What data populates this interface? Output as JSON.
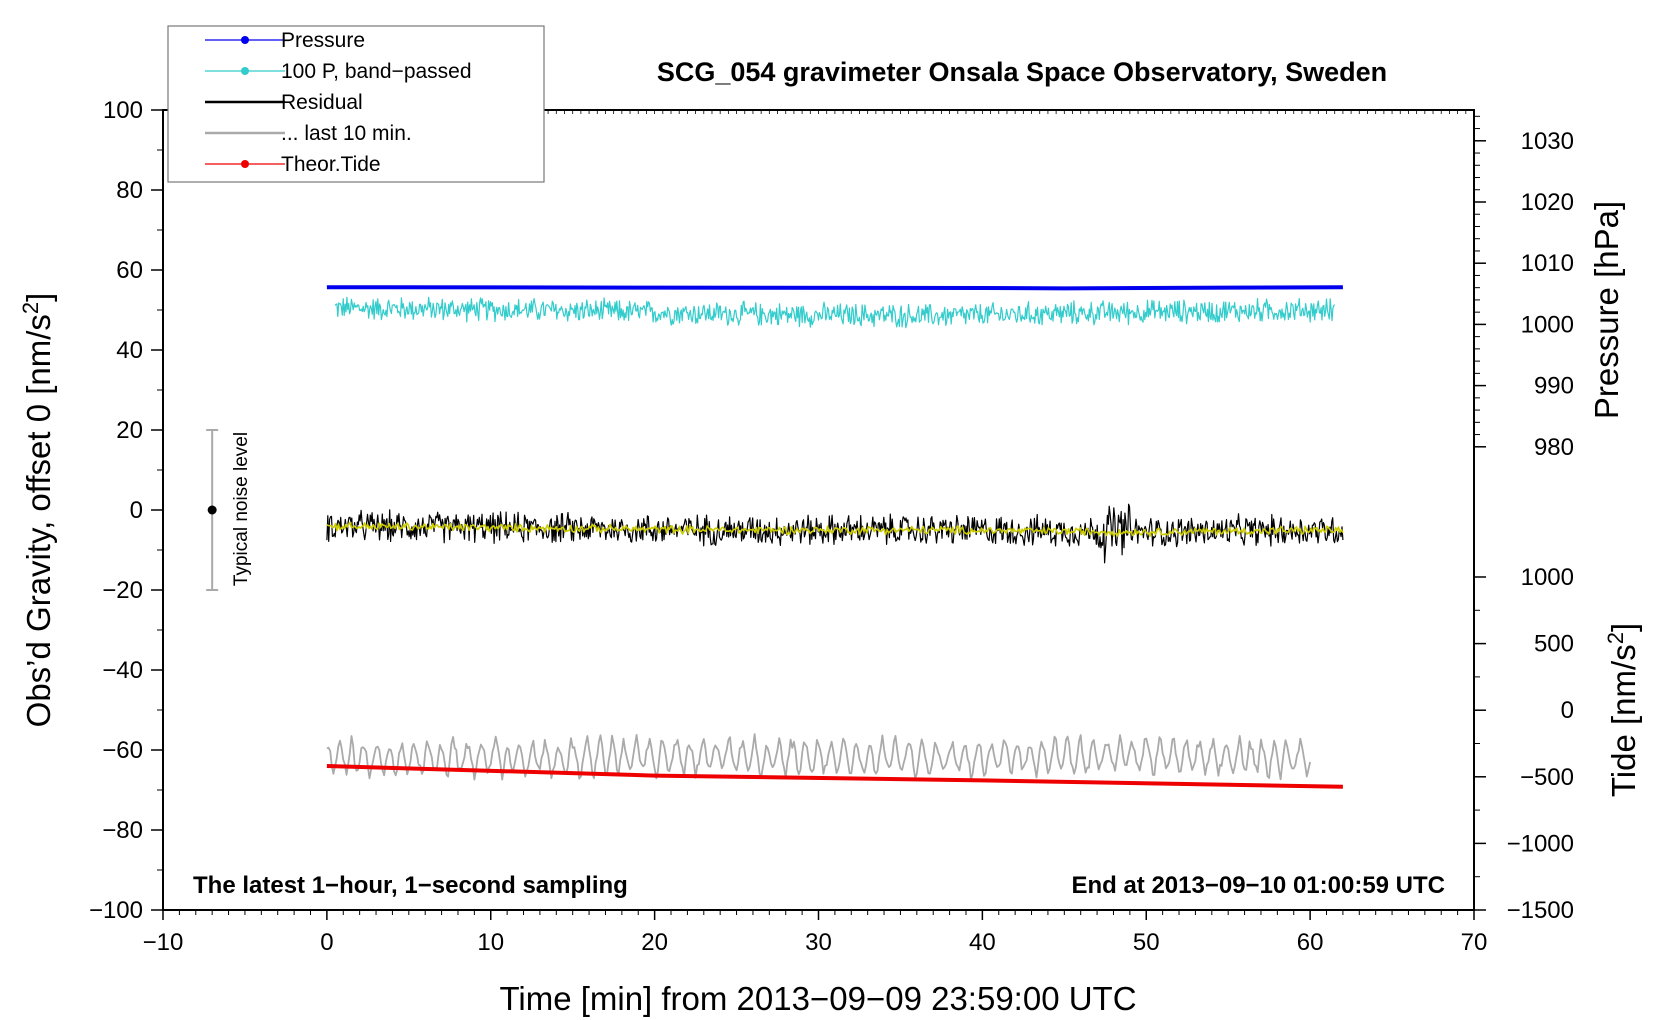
{
  "chart_data": {
    "type": "line",
    "title": "SCG_054 gravimeter Onsala Space Observatory, Sweden",
    "xlabel": "Time [min] from 2013−09−09 23:59:00 UTC",
    "ylabel_left_prefix": "Obs’d Gravity, offset 0 [nm/s",
    "ylabel_left_suffix": "]",
    "ylabel_right_top": "Pressure [hPa]",
    "ylabel_right_bottom_prefix": "Tide [nm/s",
    "ylabel_right_bottom_suffix": "]",
    "superscript": "2",
    "xlim": [
      -10,
      70
    ],
    "ylim": [
      -100,
      100
    ],
    "x_ticks": [
      -10,
      0,
      10,
      20,
      30,
      40,
      50,
      60,
      70
    ],
    "x_tick_labels": [
      "−10",
      "0",
      "10",
      "20",
      "30",
      "40",
      "50",
      "60",
      "70"
    ],
    "y_ticks": [
      -100,
      -80,
      -60,
      -40,
      -20,
      0,
      20,
      40,
      60,
      80,
      100
    ],
    "y_tick_labels": [
      "−100",
      "−80",
      "−60",
      "−40",
      "−20",
      "0",
      "20",
      "40",
      "60",
      "80",
      "100"
    ],
    "pressure_axis": {
      "ticks": [
        980,
        990,
        1000,
        1010,
        1020,
        1030
      ],
      "tick_labels": [
        "980",
        "990",
        "1000",
        "1010",
        "1020",
        "1030"
      ],
      "ref_value": 1000,
      "ref_y": 46.4,
      "gravity_per_hPa": 1.53
    },
    "tide_axis": {
      "ticks": [
        -1500,
        -1000,
        -500,
        0,
        500,
        1000
      ],
      "tick_labels": [
        "−1500",
        "−1000",
        "−500",
        "0",
        "500",
        "1000"
      ],
      "ref_value": -1500,
      "ref_y": -100,
      "gravity_per_unit": 0.0333
    },
    "annotations": {
      "left": "The latest 1−hour, 1−second sampling",
      "right": "End at 2013−09−10 01:00:59 UTC",
      "noise": "Typical noise level"
    },
    "noise_bar": {
      "x": -7,
      "center": 0,
      "half_range": 20
    },
    "legend_position": "top-left",
    "legend": [
      {
        "label": "Pressure",
        "color": "#0000ee",
        "marker": true
      },
      {
        "label": "100 P, band−passed",
        "color": "#33cccc",
        "marker": true
      },
      {
        "label": "Residual",
        "color": "#000000",
        "marker": false
      },
      {
        "label": "... last 10 min.",
        "color": "#aaaaaa",
        "marker": false
      },
      {
        "label": "Theor.Tide",
        "color": "#ee0000",
        "marker": true
      }
    ],
    "series": [
      {
        "name": "Pressure",
        "color": "#0000ee",
        "style": "thick",
        "x": [
          0,
          20,
          40,
          45,
          55,
          62
        ],
        "y": [
          55.7,
          55.6,
          55.5,
          55.4,
          55.6,
          55.7
        ]
      },
      {
        "name": "100 P, band−passed",
        "color": "#33cccc",
        "style": "noisy",
        "x_range": [
          0.5,
          61.5
        ],
        "base": [
          50.5,
          50,
          49,
          48.5,
          49.5,
          50
        ],
        "amplitude": 3.5
      },
      {
        "name": "Residual",
        "color": "#000000",
        "style": "noisy",
        "x_range": [
          0,
          62
        ],
        "base": [
          -4,
          -4.5,
          -5,
          -5,
          -5.5,
          -5
        ],
        "amplitude": 4.5
      },
      {
        "name": "Residual (smoothed)",
        "color": "#cccc00",
        "style": "noisy",
        "x_range": [
          0,
          62
        ],
        "base": [
          -4,
          -4.5,
          -5,
          -5,
          -5.5,
          -5
        ],
        "amplitude": 1.2
      },
      {
        "name": "... last 10 min.",
        "color": "#aaaaaa",
        "style": "wavy",
        "x_range": [
          0,
          60
        ],
        "base": [
          -62,
          -62,
          -61.5,
          -62,
          -61.5,
          -62
        ],
        "amplitude": 4
      },
      {
        "name": "Theor.Tide",
        "color": "#ee0000",
        "style": "thick",
        "x": [
          0,
          20,
          40,
          62
        ],
        "y": [
          -64,
          -66.4,
          -67.6,
          -69.2
        ]
      }
    ]
  }
}
